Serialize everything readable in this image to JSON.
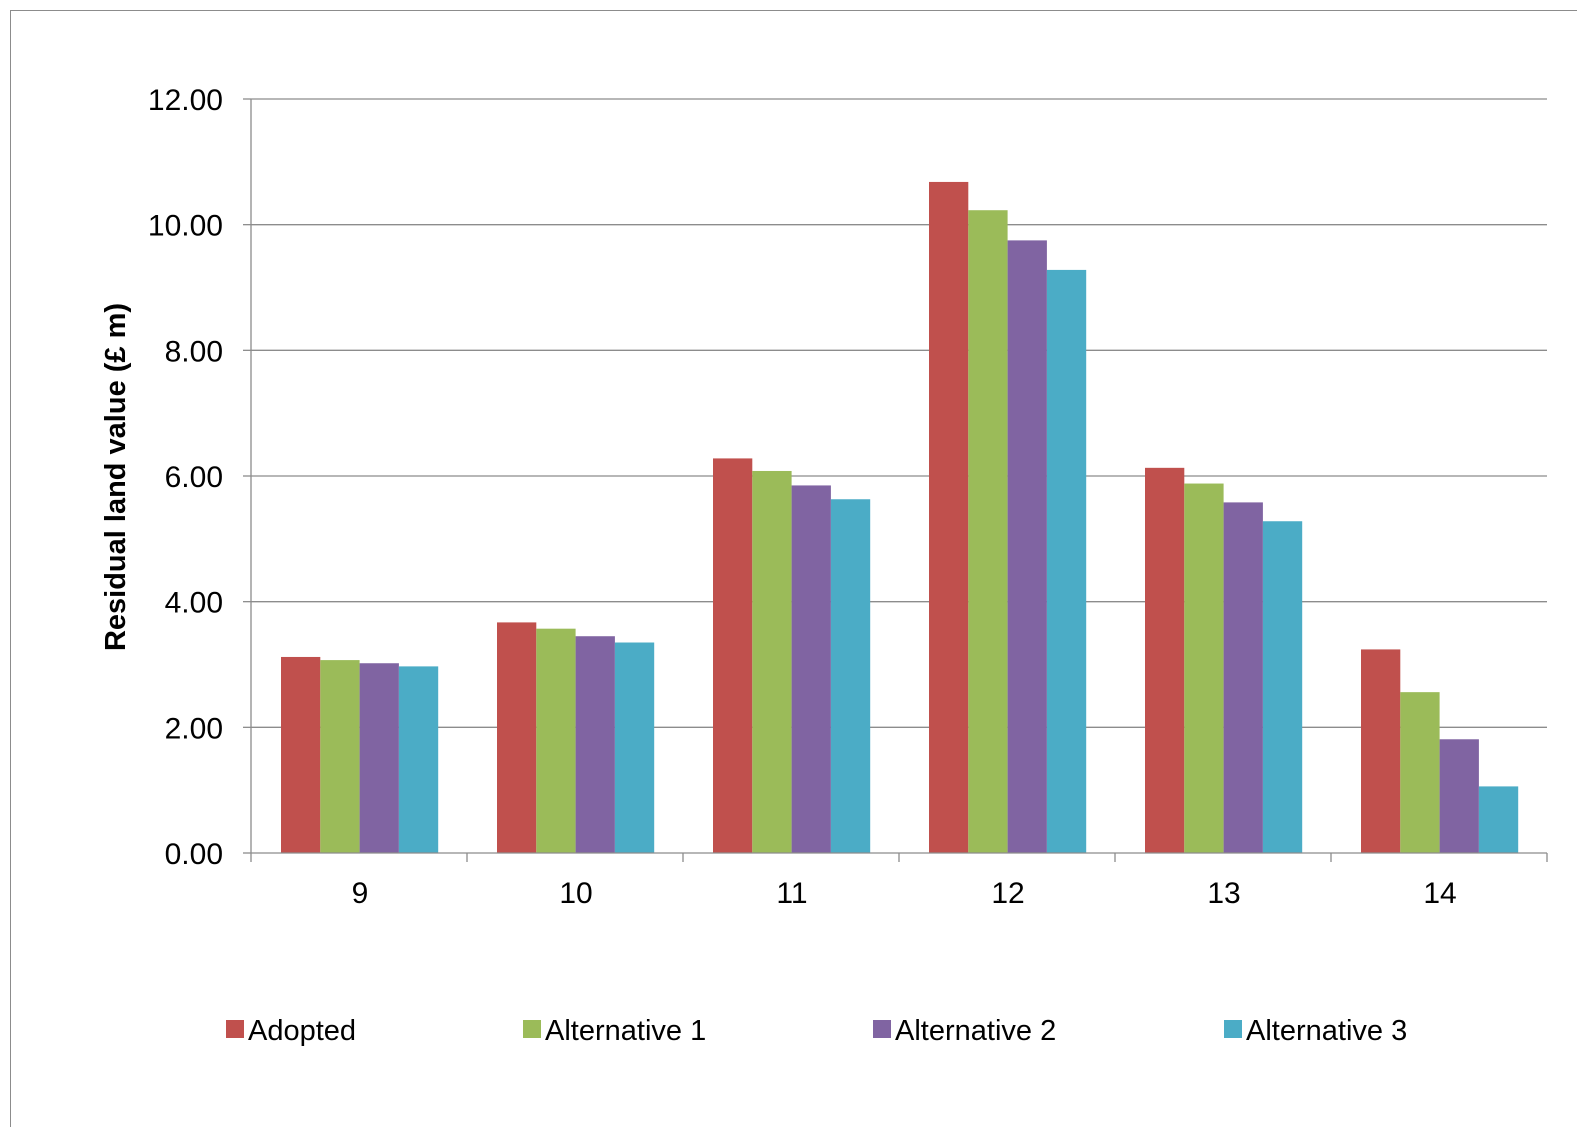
{
  "chart_data": {
    "type": "bar",
    "title": "",
    "xlabel": "",
    "ylabel": "Residual land value (£ m)",
    "categories": [
      "9",
      "10",
      "11",
      "12",
      "13",
      "14"
    ],
    "ylim": [
      0,
      12
    ],
    "yticks": [
      "0.00",
      "2.00",
      "4.00",
      "6.00",
      "8.00",
      "10.00",
      "12.00"
    ],
    "grid": true,
    "legend_position": "bottom",
    "series": [
      {
        "name": "Adopted",
        "color": "#C0504D",
        "values": [
          3.12,
          3.67,
          6.28,
          10.68,
          6.13,
          3.24
        ]
      },
      {
        "name": "Alternative 1",
        "color": "#9BBB59",
        "values": [
          3.07,
          3.57,
          6.08,
          10.23,
          5.88,
          2.56
        ]
      },
      {
        "name": "Alternative 2",
        "color": "#8064A2",
        "values": [
          3.02,
          3.45,
          5.85,
          9.75,
          5.58,
          1.81
        ]
      },
      {
        "name": "Alternative 3",
        "color": "#4BACC6",
        "values": [
          2.97,
          3.35,
          5.63,
          9.28,
          5.28,
          1.06
        ]
      }
    ]
  }
}
